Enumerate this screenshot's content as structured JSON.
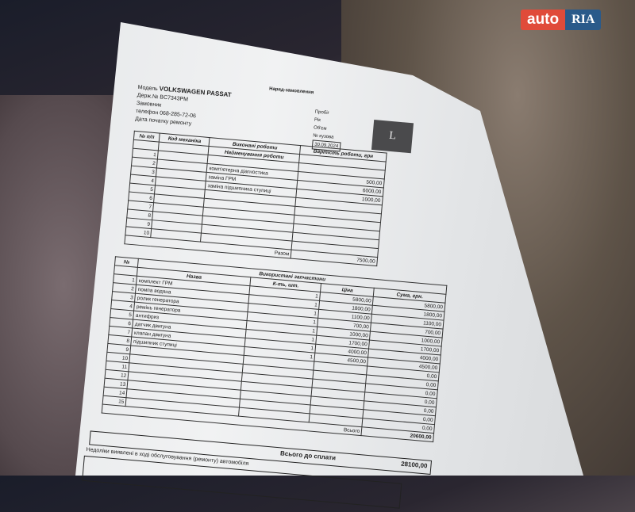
{
  "watermark": {
    "auto": "auto",
    "ria": "RIA"
  },
  "doc": {
    "title": "Наряд-замовлення",
    "model_label": "Модель",
    "model": "VOLKSWAGEN PASSAT",
    "plate_label": "Держ.№",
    "plate": "BC7343PM",
    "customer_label": "Замовник",
    "phone_label": "телефон",
    "phone": "068-285-72-06",
    "start_date_label": "Дата початку ремонту",
    "right_labels": [
      "Пробіг",
      "Рік",
      "Об'єм",
      "№ кузова"
    ],
    "date": "30.09.2024",
    "logo_letter": "L",
    "works": {
      "section_title": "Виконані роботи",
      "headers": [
        "№ п/п",
        "Код механіка",
        "Найменування роботи",
        "Вартість роботи, грн"
      ],
      "rows": [
        {
          "n": "1",
          "name": "",
          "price": ""
        },
        {
          "n": "2",
          "name": "комп'ютерна діагностика",
          "price": "500,00"
        },
        {
          "n": "3",
          "name": "заміна ГРМ",
          "price": "6000,00"
        },
        {
          "n": "4",
          "name": "заміна підшипника ступиці",
          "price": "1000,00"
        },
        {
          "n": "5",
          "name": "",
          "price": ""
        },
        {
          "n": "6",
          "name": "",
          "price": ""
        },
        {
          "n": "7",
          "name": "",
          "price": ""
        },
        {
          "n": "8",
          "name": "",
          "price": ""
        },
        {
          "n": "9",
          "name": "",
          "price": ""
        },
        {
          "n": "10",
          "name": "",
          "price": ""
        }
      ],
      "total_label": "Разом",
      "total": "7500,00"
    },
    "parts": {
      "section_title": "Використані запчастини",
      "headers": [
        "№",
        "Назва",
        "К-ть, шт.",
        "Ціна",
        "Сума, грн."
      ],
      "rows": [
        {
          "n": "1",
          "name": "комплект ГРМ",
          "qty": "1",
          "price": "5800,00",
          "sum": "5800,00"
        },
        {
          "n": "2",
          "name": "помпа водяна",
          "qty": "1",
          "price": "1800,00",
          "sum": "1800,00"
        },
        {
          "n": "3",
          "name": "ролик генератора",
          "qty": "1",
          "price": "1100,00",
          "sum": "1100,00"
        },
        {
          "n": "4",
          "name": "ремінь генератора",
          "qty": "1",
          "price": "700,00",
          "sum": "700,00"
        },
        {
          "n": "5",
          "name": "антифриз",
          "qty": "1",
          "price": "1000,00",
          "sum": "1000,00"
        },
        {
          "n": "6",
          "name": "датчик двигуна",
          "qty": "1",
          "price": "1700,00",
          "sum": "1700,00"
        },
        {
          "n": "7",
          "name": "клапан двигуна",
          "qty": "1",
          "price": "4000,00",
          "sum": "4000,00"
        },
        {
          "n": "8",
          "name": "підшипник ступиці",
          "qty": "1",
          "price": "4500,00",
          "sum": "4500,00"
        },
        {
          "n": "9",
          "name": "",
          "qty": "",
          "price": "",
          "sum": "0,00"
        },
        {
          "n": "10",
          "name": "",
          "qty": "",
          "price": "",
          "sum": "0,00"
        },
        {
          "n": "11",
          "name": "",
          "qty": "",
          "price": "",
          "sum": "0,00"
        },
        {
          "n": "12",
          "name": "",
          "qty": "",
          "price": "",
          "sum": "0,00"
        },
        {
          "n": "13",
          "name": "",
          "qty": "",
          "price": "",
          "sum": "0,00"
        },
        {
          "n": "14",
          "name": "",
          "qty": "",
          "price": "",
          "sum": "0,00"
        },
        {
          "n": "15",
          "name": "",
          "qty": "",
          "price": "",
          "sum": "0,00"
        }
      ],
      "total_label": "Всього",
      "total": "20600,00"
    },
    "grand_total_label": "Всього до сплати",
    "grand_total": "28100,00",
    "defects_label": "Недоліки виявлені в ході обслуговування (ремонту) автомобіля"
  }
}
